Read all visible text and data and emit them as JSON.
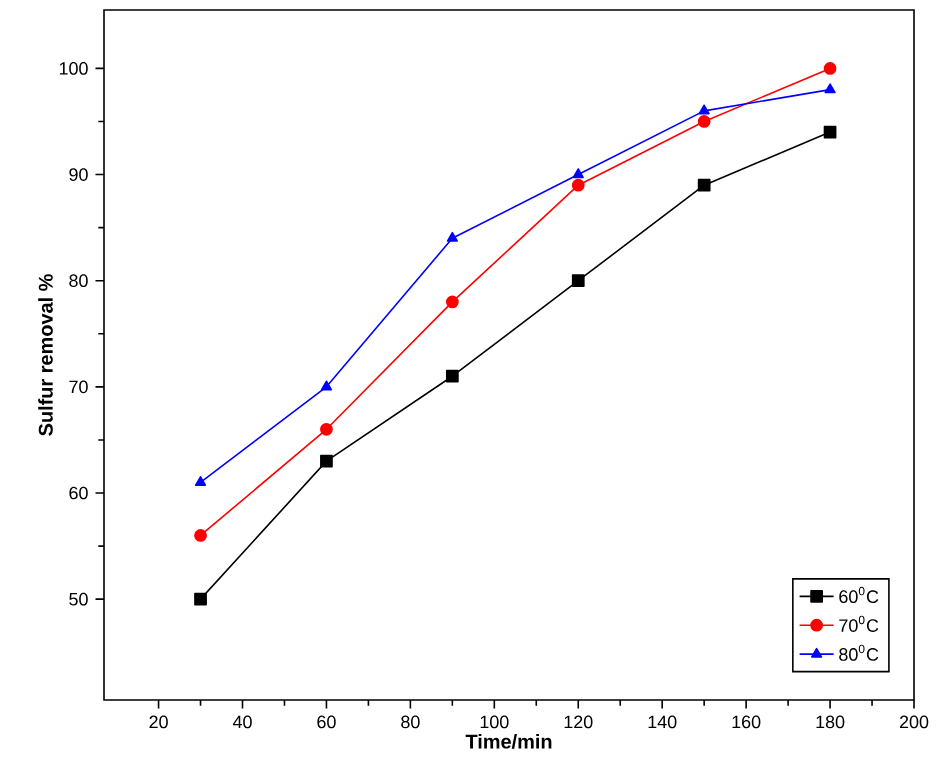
{
  "chart_data": {
    "type": "line",
    "xlabel": "Time/min",
    "ylabel": "Sulfur removal %",
    "x": [
      30,
      60,
      90,
      120,
      150,
      180
    ],
    "series": [
      {
        "name": "60$^{0}$C",
        "color": "#000000",
        "marker": "square",
        "values": [
          50,
          63,
          71,
          80,
          89,
          94
        ]
      },
      {
        "name": "70$^{0}$C",
        "color": "#ff0000",
        "marker": "circle",
        "values": [
          56,
          66,
          78,
          89,
          95,
          100
        ]
      },
      {
        "name": "80$^{0}$C",
        "color": "#0000ff",
        "marker": "triangle",
        "values": [
          61,
          70,
          84,
          90,
          96,
          98
        ]
      }
    ],
    "xlim": [
      7,
      200
    ],
    "xticks": [
      20,
      40,
      60,
      80,
      100,
      120,
      140,
      160,
      180,
      200
    ],
    "ylim": [
      40.5,
      105.5
    ],
    "yticks": [
      50,
      60,
      70,
      80,
      90,
      100
    ],
    "grid": false,
    "legend": "bottom right",
    "line_style": "solid"
  }
}
